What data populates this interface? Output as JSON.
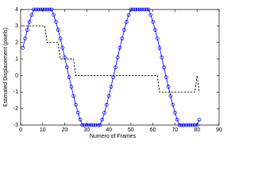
{
  "chart_data": {
    "type": "line",
    "xlabel": "Numero of Frames",
    "ylabel": "Estimated Displacement (pixels)",
    "xlim": [
      0,
      90
    ],
    "xticks": [
      0,
      10,
      20,
      30,
      40,
      50,
      60,
      70,
      80,
      90
    ],
    "ylim": [
      -3,
      4
    ],
    "yticks": [
      -3,
      -2,
      -1,
      0,
      1,
      2,
      3,
      4
    ],
    "grid": false,
    "series": [
      {
        "color": "#0000ff",
        "style": "solid",
        "marker": "circle",
        "x": [
          1,
          2,
          3,
          4,
          5,
          6,
          7,
          8,
          9,
          10,
          11,
          12,
          13,
          14,
          15,
          16,
          17,
          18,
          19,
          20,
          21,
          22,
          23,
          24,
          25,
          26,
          27,
          28,
          29,
          30,
          31,
          32,
          33,
          34,
          35,
          36,
          37,
          38,
          39,
          40,
          41,
          42,
          43,
          44,
          45,
          46,
          47,
          48,
          49,
          50,
          51,
          52,
          53,
          54,
          55,
          56,
          57,
          58,
          59,
          60,
          61,
          62,
          63,
          64,
          65,
          66,
          67,
          68,
          69,
          70,
          71,
          72,
          73,
          74,
          75,
          76,
          77,
          78,
          79,
          80,
          81
        ],
        "values": [
          1.68,
          2.24,
          2.77,
          3.25,
          3.67,
          4,
          4,
          4,
          4,
          4,
          4,
          4,
          4,
          4,
          3.67,
          3.25,
          2.77,
          2.24,
          1.68,
          1.1,
          0.5,
          -0.1,
          -0.68,
          -1.24,
          -1.77,
          -2.25,
          -2.67,
          -3,
          -3,
          -3,
          -3,
          -3,
          -3,
          -3,
          -3,
          -3,
          -2.67,
          -2.25,
          -1.77,
          -1.24,
          -0.68,
          -0.1,
          0.5,
          1.1,
          1.68,
          2.24,
          2.77,
          3.25,
          3.67,
          4,
          4,
          4,
          4,
          4,
          4,
          4,
          4,
          4,
          3.67,
          3.25,
          2.77,
          2.24,
          1.68,
          1.1,
          0.5,
          -0.1,
          -0.68,
          -1.24,
          -1.77,
          -2.25,
          -2.67,
          -3,
          -3,
          -3,
          -3,
          -3,
          -3,
          -3,
          -3,
          -3,
          -2.67
        ]
      },
      {
        "color": "#000000",
        "style": "dashed",
        "x": [
          1,
          11,
          12,
          17,
          18,
          24,
          25,
          62,
          63,
          79,
          80,
          81
        ],
        "values": [
          3,
          3,
          2,
          2,
          1,
          1,
          0,
          0,
          -1,
          -1,
          0,
          -1
        ]
      }
    ]
  }
}
